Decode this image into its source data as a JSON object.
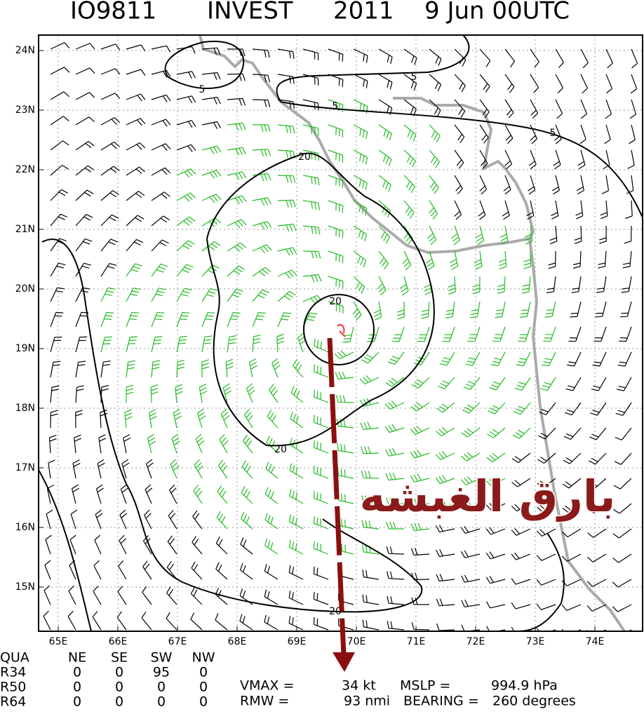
{
  "title": {
    "storm_id": "IO9811",
    "name": "INVEST",
    "year": "2011",
    "date": "9 Jun 00UTC"
  },
  "map": {
    "lat_ticks": [
      "24N",
      "23N",
      "22N",
      "21N",
      "20N",
      "19N",
      "18N",
      "17N",
      "16N",
      "15N"
    ],
    "lon_ticks": [
      "65E",
      "66E",
      "67E",
      "68E",
      "69E",
      "70E",
      "71E",
      "72E",
      "73E",
      "74E"
    ],
    "contour_labels": [
      "5",
      "5",
      "5",
      "5",
      "20",
      "20",
      "20",
      "20"
    ],
    "watermark": "بارق الغبشه"
  },
  "table": {
    "header": [
      "QUA",
      "NE",
      "SE",
      "SW",
      "NW"
    ],
    "rows": [
      [
        "R34",
        "0",
        "0",
        "95",
        "0"
      ],
      [
        "R50",
        "0",
        "0",
        "0",
        "0"
      ],
      [
        "R64",
        "0",
        "0",
        "0",
        "0"
      ]
    ]
  },
  "stats": {
    "vmax_label": "VMAX =",
    "vmax": "34 kt",
    "mslp_label": "MSLP =",
    "mslp": "994.9 hPa",
    "rmw_label": "RMW =",
    "rmw": "93 nmi",
    "bearing_label": "BEARING =",
    "bearing": "260 degrees"
  }
}
